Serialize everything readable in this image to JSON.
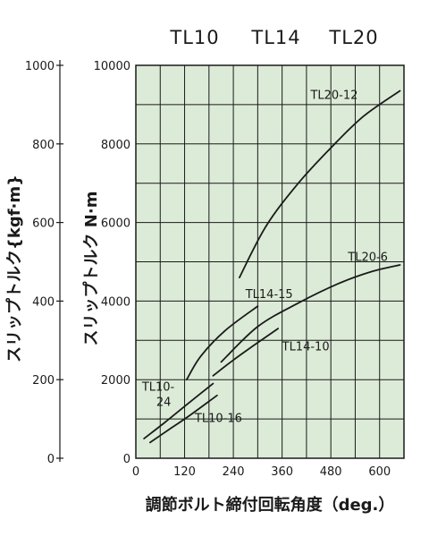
{
  "chart_data": {
    "type": "line",
    "title_models": [
      "TL10",
      "TL14",
      "TL20"
    ],
    "xlabel": "調節ボルト締付回転角度（deg.）",
    "ylabel": "スリップトルク N·m",
    "ylabel_secondary": "スリップトルク{kgf·m}",
    "xlim": [
      0,
      660
    ],
    "ylim": [
      0,
      10000
    ],
    "ylim_secondary": [
      0,
      1000
    ],
    "x_ticks": [
      "0",
      "120",
      "240",
      "360",
      "480",
      "600"
    ],
    "x_tick_values": [
      0,
      120,
      240,
      360,
      480,
      600
    ],
    "y_ticks": [
      "0",
      "2000",
      "4000",
      "6000",
      "8000",
      "10000"
    ],
    "y_tick_values": [
      0,
      2000,
      4000,
      6000,
      8000,
      10000
    ],
    "y2_ticks": [
      "0",
      "200",
      "400",
      "600",
      "800",
      "1000"
    ],
    "y2_tick_values": [
      0,
      200,
      400,
      600,
      800,
      1000
    ],
    "grid": true,
    "background_color": "#dcebd7",
    "line_color": "#1a1a1a",
    "series": [
      {
        "name": "TL20-12",
        "points": [
          [
            255,
            4600
          ],
          [
            320,
            5900
          ],
          [
            400,
            7000
          ],
          [
            480,
            7900
          ],
          [
            560,
            8700
          ],
          [
            650,
            9350
          ]
        ]
      },
      {
        "name": "TL20-6",
        "points": [
          [
            210,
            2450
          ],
          [
            300,
            3350
          ],
          [
            400,
            3950
          ],
          [
            500,
            4450
          ],
          [
            580,
            4750
          ],
          [
            650,
            4920
          ]
        ]
      },
      {
        "name": "TL14-15",
        "points": [
          [
            125,
            2000
          ],
          [
            160,
            2600
          ],
          [
            220,
            3250
          ],
          [
            300,
            3870
          ]
        ]
      },
      {
        "name": "TL14-10",
        "points": [
          [
            190,
            2100
          ],
          [
            240,
            2500
          ],
          [
            290,
            2870
          ],
          [
            350,
            3300
          ]
        ]
      },
      {
        "name": "TL10-24",
        "points": [
          [
            20,
            500
          ],
          [
            70,
            900
          ],
          [
            120,
            1320
          ],
          [
            190,
            1900
          ]
        ]
      },
      {
        "name": "TL10-16",
        "points": [
          [
            35,
            400
          ],
          [
            80,
            720
          ],
          [
            130,
            1070
          ],
          [
            200,
            1600
          ]
        ]
      }
    ],
    "series_labels": [
      {
        "series": "TL20-12",
        "text": "TL20-12",
        "x": 430,
        "y": 9150
      },
      {
        "series": "TL20-6",
        "text": "TL20-6",
        "x": 522,
        "y": 5020
      },
      {
        "series": "TL14-15",
        "text": "TL14-15",
        "x": 270,
        "y": 4080
      },
      {
        "series": "TL14-10",
        "text": "TL14-10",
        "x": 360,
        "y": 2740
      },
      {
        "series": "TL10-24",
        "text": "TL10-",
        "text2": "24",
        "x": 15,
        "y": 1720
      },
      {
        "series": "TL10-16",
        "text": "TL10-16",
        "x": 145,
        "y": 920
      }
    ]
  }
}
